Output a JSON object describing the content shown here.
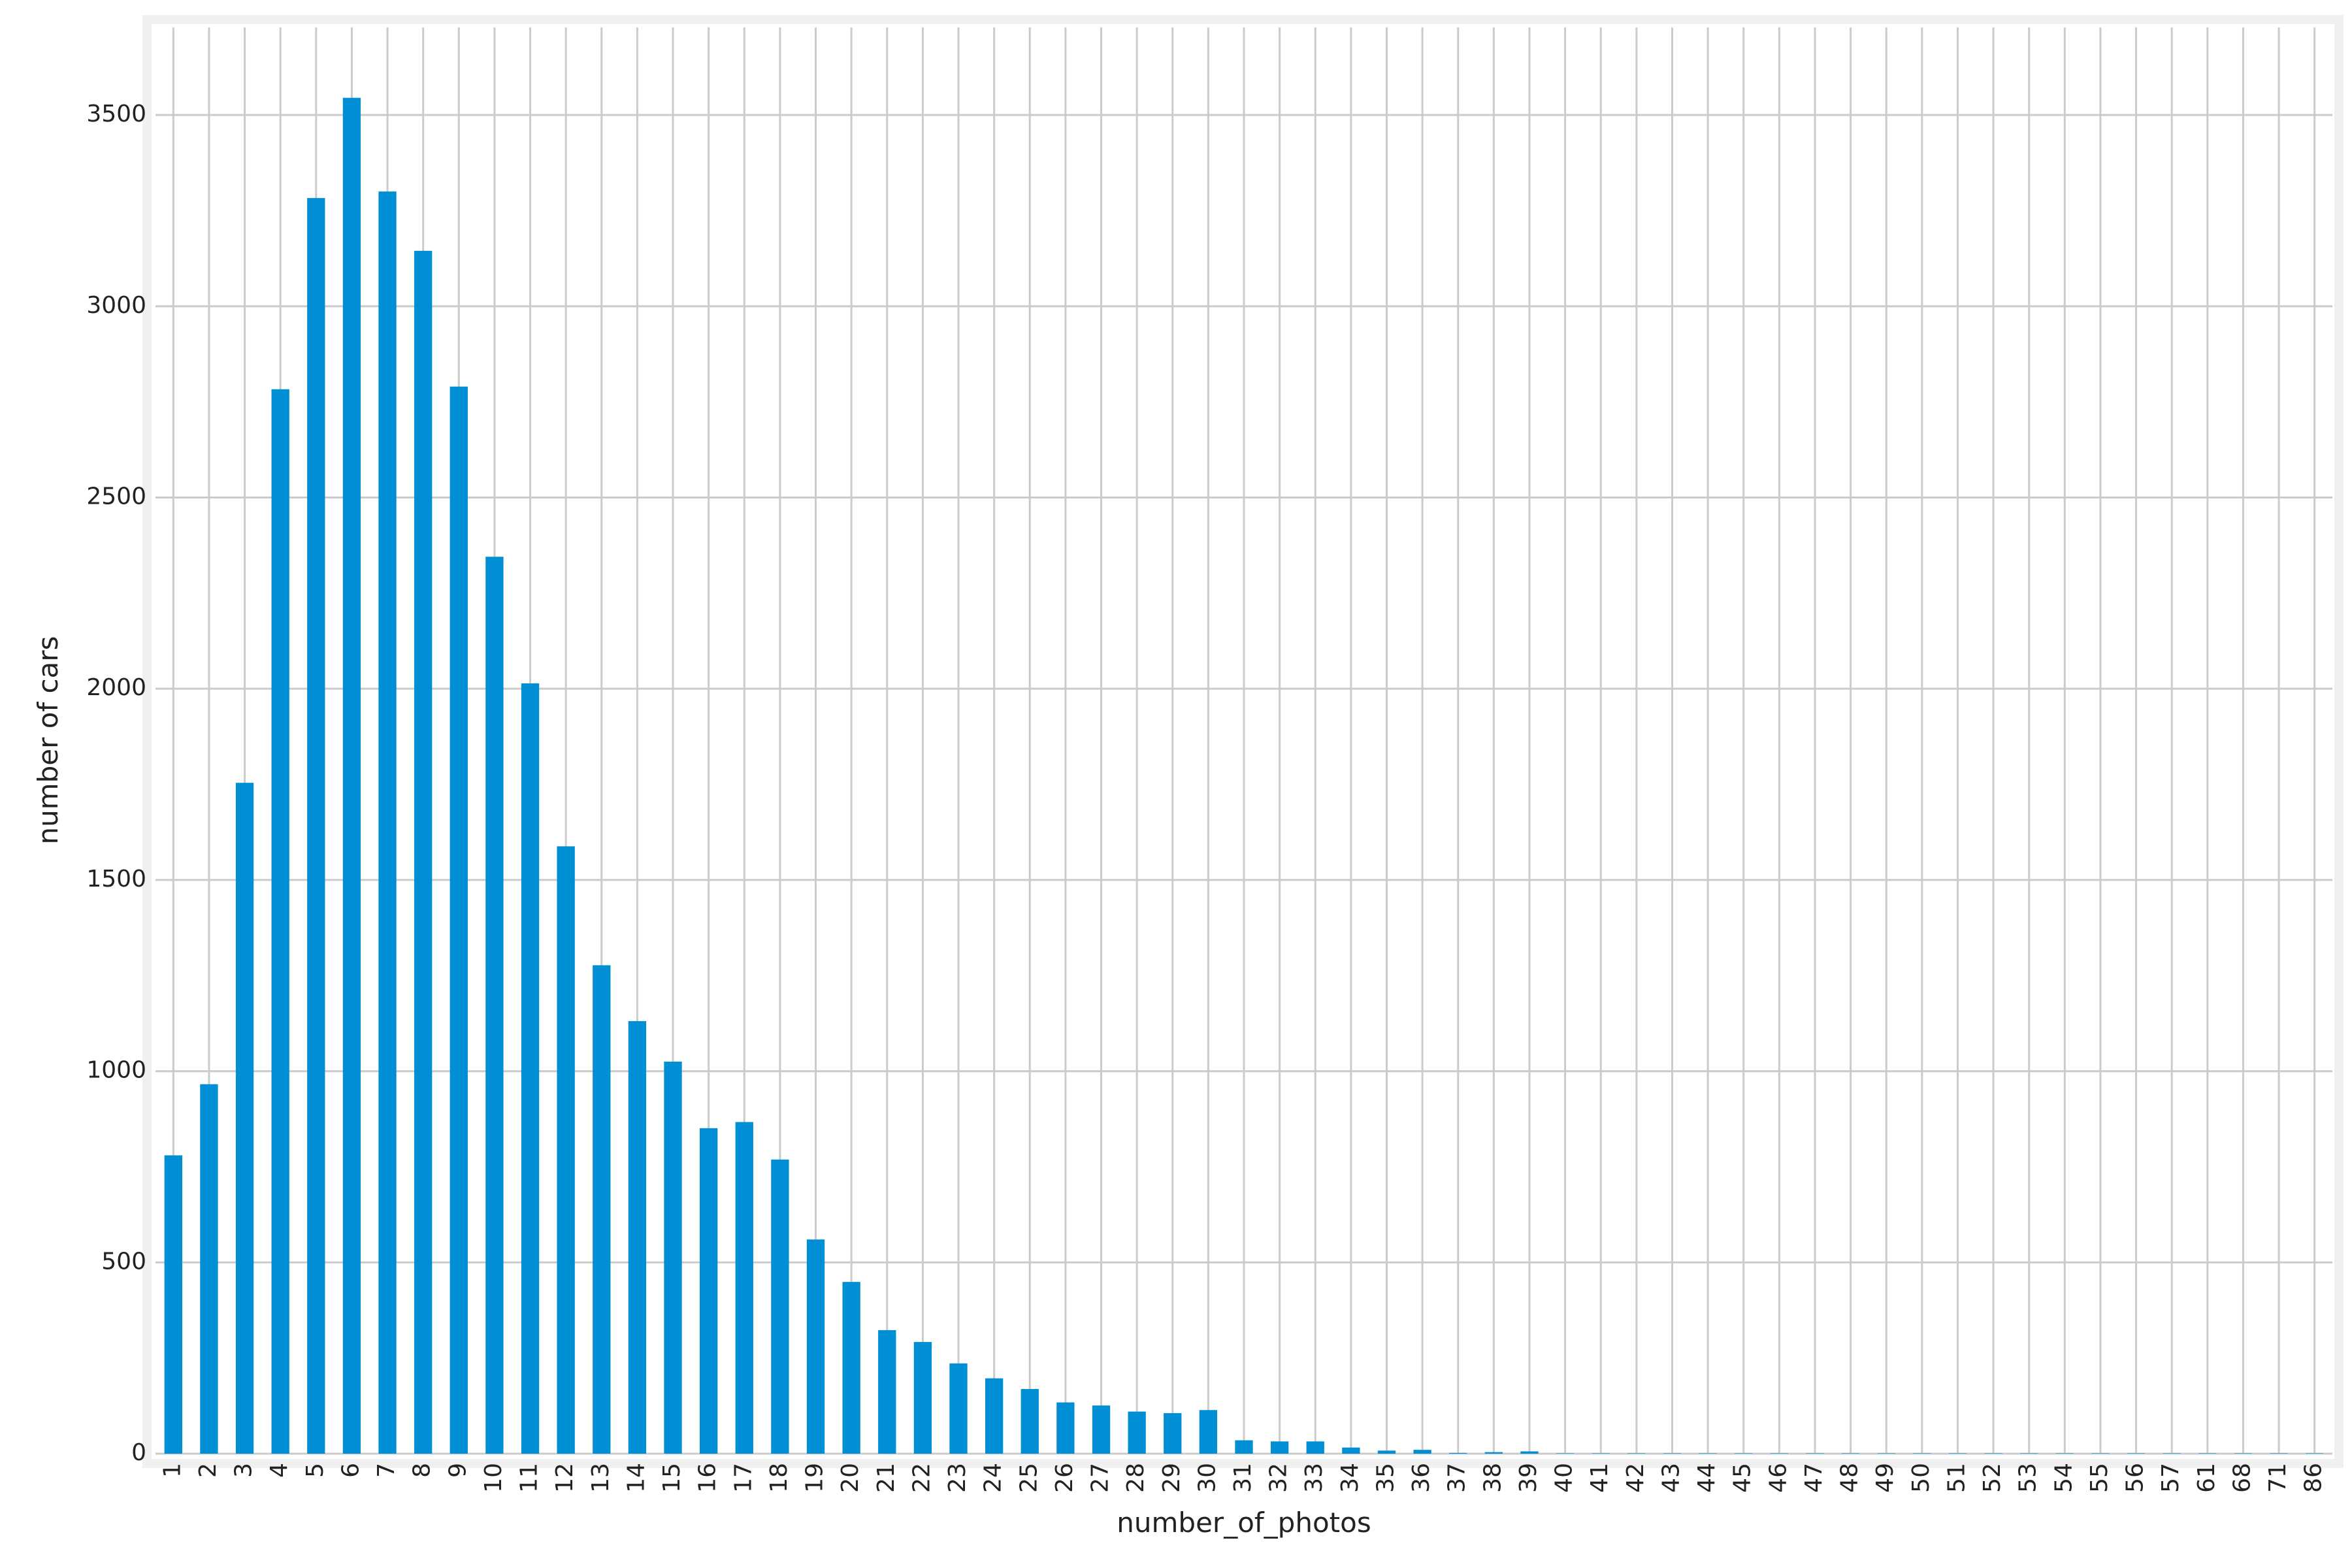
{
  "chart_data": {
    "type": "bar",
    "x_label": "number_of_photos",
    "y_label": "number of cars",
    "categories": [
      "1",
      "2",
      "3",
      "4",
      "5",
      "6",
      "7",
      "8",
      "9",
      "10",
      "11",
      "12",
      "13",
      "14",
      "15",
      "16",
      "17",
      "18",
      "19",
      "20",
      "21",
      "22",
      "23",
      "24",
      "25",
      "26",
      "27",
      "28",
      "29",
      "30",
      "31",
      "32",
      "33",
      "34",
      "35",
      "36",
      "37",
      "38",
      "39",
      "40",
      "41",
      "42",
      "43",
      "44",
      "45",
      "46",
      "47",
      "48",
      "49",
      "50",
      "51",
      "52",
      "53",
      "54",
      "55",
      "56",
      "57",
      "61",
      "68",
      "71",
      "86"
    ],
    "values": [
      780,
      966,
      1754,
      2783,
      3283,
      3545,
      3300,
      3145,
      2790,
      2345,
      2014,
      1588,
      1277,
      1131,
      1025,
      851,
      867,
      769,
      560,
      449,
      323,
      292,
      236,
      197,
      169,
      134,
      126,
      110,
      106,
      114,
      35,
      32,
      32,
      16,
      8,
      10,
      2,
      4,
      6,
      1,
      1,
      1,
      1,
      1,
      1,
      1,
      1,
      1,
      1,
      1,
      1,
      1,
      1,
      1,
      1,
      1,
      1,
      1,
      1,
      1,
      1
    ],
    "color": "#008fd5",
    "ylim": [
      0,
      3729
    ],
    "yticks": [
      0,
      500,
      1000,
      1500,
      2000,
      2500,
      3000,
      3500
    ],
    "grid": true
  }
}
